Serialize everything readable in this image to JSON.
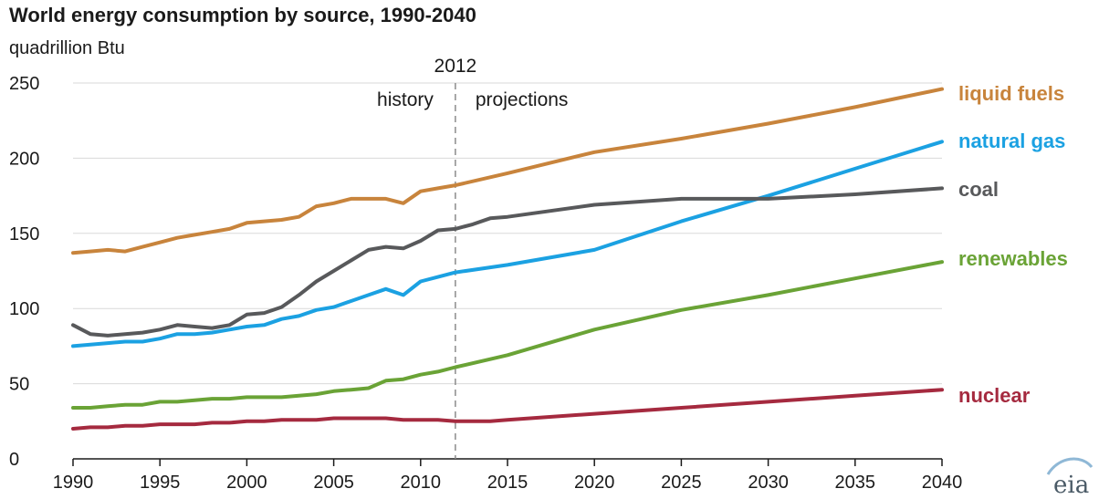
{
  "chart_data": {
    "type": "line",
    "title": "World energy consumption by source, 1990-2040",
    "ylabel": "quadrillion Btu",
    "xlim": [
      1990,
      2040
    ],
    "ylim": [
      0,
      250
    ],
    "x_ticks": [
      "1990",
      "1995",
      "2000",
      "2005",
      "2010",
      "2015",
      "2020",
      "2025",
      "2030",
      "2035",
      "2040"
    ],
    "y_ticks": [
      "0",
      "50",
      "100",
      "150",
      "200",
      "250"
    ],
    "grid": true,
    "divider": {
      "x": 2012,
      "label": "2012",
      "left_label": "history",
      "right_label": "projections"
    },
    "series": [
      {
        "name": "liquid fuels",
        "color": "#c8843c",
        "x": [
          1990,
          1991,
          1992,
          1993,
          1994,
          1995,
          1996,
          1997,
          1998,
          1999,
          2000,
          2001,
          2002,
          2003,
          2004,
          2005,
          2006,
          2007,
          2008,
          2009,
          2010,
          2011,
          2012,
          2015,
          2020,
          2025,
          2030,
          2035,
          2040
        ],
        "values": [
          137,
          138,
          139,
          138,
          141,
          144,
          147,
          149,
          151,
          153,
          157,
          158,
          159,
          161,
          168,
          170,
          173,
          173,
          173,
          170,
          178,
          180,
          182,
          190,
          204,
          213,
          223,
          234,
          246
        ]
      },
      {
        "name": "natural gas",
        "color": "#1ba1e2",
        "x": [
          1990,
          1991,
          1992,
          1993,
          1994,
          1995,
          1996,
          1997,
          1998,
          1999,
          2000,
          2001,
          2002,
          2003,
          2004,
          2005,
          2006,
          2007,
          2008,
          2009,
          2010,
          2011,
          2012,
          2015,
          2020,
          2025,
          2030,
          2035,
          2040
        ],
        "values": [
          75,
          76,
          77,
          78,
          78,
          80,
          83,
          83,
          84,
          86,
          88,
          89,
          93,
          95,
          99,
          101,
          105,
          109,
          113,
          109,
          118,
          121,
          124,
          129,
          139,
          158,
          175,
          193,
          211
        ]
      },
      {
        "name": "coal",
        "color": "#58595b",
        "x": [
          1990,
          1991,
          1992,
          1993,
          1994,
          1995,
          1996,
          1997,
          1998,
          1999,
          2000,
          2001,
          2002,
          2003,
          2004,
          2005,
          2006,
          2007,
          2008,
          2009,
          2010,
          2011,
          2012,
          2013,
          2014,
          2015,
          2020,
          2025,
          2030,
          2035,
          2040
        ],
        "values": [
          89,
          83,
          82,
          83,
          84,
          86,
          89,
          88,
          87,
          89,
          96,
          97,
          101,
          109,
          118,
          125,
          132,
          139,
          141,
          140,
          145,
          152,
          153,
          156,
          160,
          161,
          169,
          173,
          173,
          176,
          180
        ]
      },
      {
        "name": "renewables",
        "color": "#6aa336",
        "x": [
          1990,
          1991,
          1992,
          1993,
          1994,
          1995,
          1996,
          1997,
          1998,
          1999,
          2000,
          2001,
          2002,
          2003,
          2004,
          2005,
          2006,
          2007,
          2008,
          2009,
          2010,
          2011,
          2012,
          2015,
          2020,
          2025,
          2030,
          2035,
          2040
        ],
        "values": [
          34,
          34,
          35,
          36,
          36,
          38,
          38,
          39,
          40,
          40,
          41,
          41,
          41,
          42,
          43,
          45,
          46,
          47,
          52,
          53,
          56,
          58,
          61,
          69,
          86,
          99,
          109,
          120,
          131
        ]
      },
      {
        "name": "nuclear",
        "color": "#a52a3f",
        "x": [
          1990,
          1991,
          1992,
          1993,
          1994,
          1995,
          1996,
          1997,
          1998,
          1999,
          2000,
          2001,
          2002,
          2003,
          2004,
          2005,
          2006,
          2007,
          2008,
          2009,
          2010,
          2011,
          2012,
          2013,
          2014,
          2015,
          2020,
          2025,
          2030,
          2035,
          2040
        ],
        "values": [
          20,
          21,
          21,
          22,
          22,
          23,
          23,
          23,
          24,
          24,
          25,
          25,
          26,
          26,
          26,
          27,
          27,
          27,
          27,
          26,
          26,
          26,
          25,
          25,
          25,
          26,
          30,
          34,
          38,
          42,
          46
        ]
      }
    ]
  },
  "logo": {
    "text": "eia"
  }
}
